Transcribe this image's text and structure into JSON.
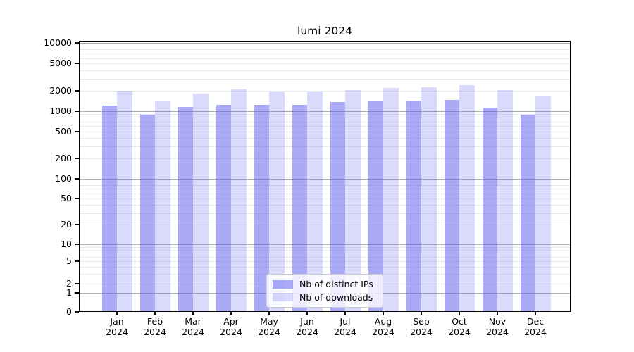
{
  "title": "lumi 2024",
  "legend": {
    "series1_label": "Nb of distinct IPs",
    "series2_label": "Nb of downloads"
  },
  "colors": {
    "bar_distinct_ips": "rgba(85,85,240,0.5)",
    "bar_downloads": "rgba(85,85,240,0.22)",
    "grid_major": "#b0b0b0",
    "grid_minor": "#e9e9e9",
    "axis": "#000000"
  },
  "chart_data": {
    "type": "bar",
    "title": "lumi 2024",
    "yscale": "symlog",
    "ylim": [
      0,
      10000
    ],
    "grid": "on",
    "legend_position": "lower center",
    "months": [
      "Jan",
      "Feb",
      "Mar",
      "Apr",
      "May",
      "Jun",
      "Jul",
      "Aug",
      "Sep",
      "Oct",
      "Nov",
      "Dec"
    ],
    "year": "2024",
    "categories": [
      "Jan 2024",
      "Feb 2024",
      "Mar 2024",
      "Apr 2024",
      "May 2024",
      "Jun 2024",
      "Jul 2024",
      "Aug 2024",
      "Sep 2024",
      "Oct 2024",
      "Nov 2024",
      "Dec 2024"
    ],
    "y_ticks": [
      0,
      1,
      2,
      5,
      10,
      20,
      50,
      100,
      200,
      500,
      1000,
      2000,
      5000,
      10000
    ],
    "series": [
      {
        "name": "Nb of distinct IPs",
        "values": [
          1200,
          890,
          1140,
          1230,
          1230,
          1250,
          1360,
          1400,
          1440,
          1450,
          1120,
          890
        ]
      },
      {
        "name": "Nb of downloads",
        "values": [
          2000,
          1410,
          1820,
          2070,
          1960,
          1960,
          2020,
          2190,
          2240,
          2420,
          2050,
          1690
        ]
      }
    ]
  }
}
